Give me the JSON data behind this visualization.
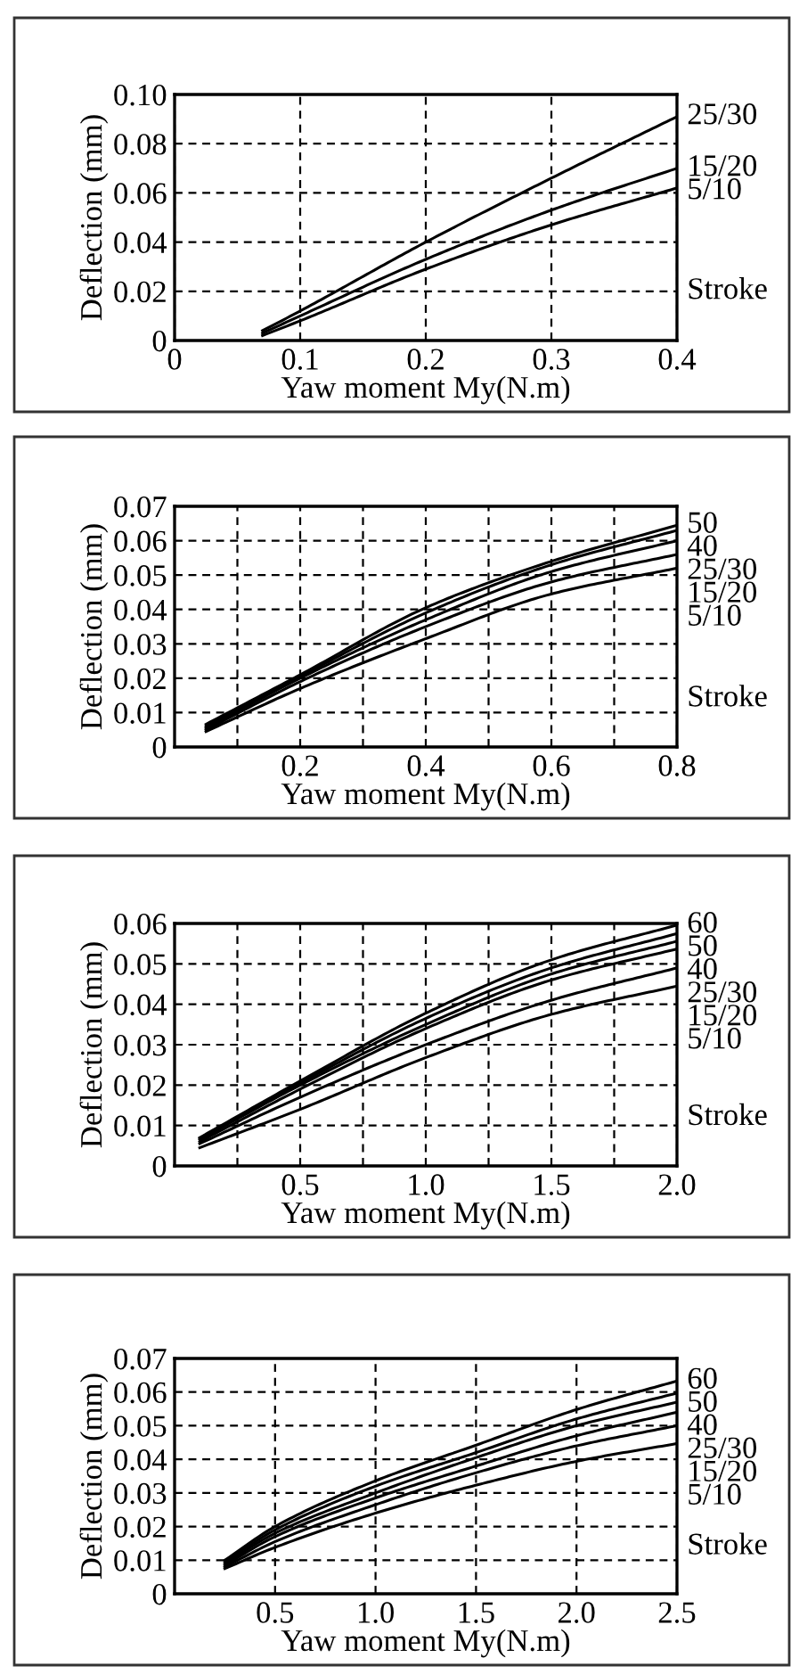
{
  "chart_data": [
    {
      "type": "line",
      "xlabel": "Yaw moment My(N.m)",
      "ylabel": "Deflection (mm)",
      "xlim": [
        0,
        0.4
      ],
      "ylim": [
        0,
        0.1
      ],
      "xticks": [
        0,
        0.1,
        0.2,
        0.3,
        0.4
      ],
      "yticks": [
        0,
        0.02,
        0.04,
        0.06,
        0.08,
        {
          "value": 0.1,
          "label": "0.10"
        }
      ],
      "grid": true,
      "annotations": [
        "Stroke"
      ],
      "x": [
        0.07,
        0.1,
        0.2,
        0.3,
        0.4
      ],
      "series": [
        {
          "name": "25/30",
          "color": "#000000",
          "values": [
            0.004,
            0.012,
            0.04,
            0.066,
            0.091
          ]
        },
        {
          "name": "15/20",
          "color": "#000000",
          "values": [
            0.003,
            0.01,
            0.033,
            0.053,
            0.07
          ]
        },
        {
          "name": "5/10",
          "color": "#000000",
          "values": [
            0.002,
            0.008,
            0.029,
            0.047,
            0.062
          ]
        }
      ]
    },
    {
      "type": "line",
      "xlabel": "Yaw moment My(N.m)",
      "ylabel": "Deflection (mm)",
      "xlim": [
        0,
        0.8
      ],
      "ylim": [
        0,
        0.07
      ],
      "xticks": [
        {
          "value": 0.1,
          "label": null
        },
        0.2,
        {
          "value": 0.3,
          "label": null
        },
        0.4,
        {
          "value": 0.5,
          "label": null
        },
        0.6,
        {
          "value": 0.7,
          "label": null
        },
        0.8
      ],
      "yticks": [
        0,
        0.01,
        0.02,
        0.03,
        0.04,
        0.05,
        0.06,
        0.07
      ],
      "grid": true,
      "annotations": [
        "Stroke"
      ],
      "x": [
        0.05,
        0.2,
        0.4,
        0.6,
        0.8
      ],
      "series": [
        {
          "name": "50",
          "color": "#000000",
          "values": [
            0.0066,
            0.021,
            0.0405,
            0.054,
            0.0645
          ]
        },
        {
          "name": "40",
          "color": "#000000",
          "values": [
            0.006,
            0.0205,
            0.039,
            0.053,
            0.063
          ]
        },
        {
          "name": "25/30",
          "color": "#000000",
          "values": [
            0.0055,
            0.02,
            0.037,
            0.051,
            0.06
          ]
        },
        {
          "name": "15/20",
          "color": "#000000",
          "values": [
            0.005,
            0.019,
            0.035,
            0.048,
            0.056
          ]
        },
        {
          "name": "5/10",
          "color": "#000000",
          "values": [
            0.0045,
            0.017,
            0.0315,
            0.0445,
            0.052
          ]
        }
      ]
    },
    {
      "type": "line",
      "xlabel": "Yaw moment My(N.m)",
      "ylabel": "Deflection (mm)",
      "xlim": [
        0,
        2.0
      ],
      "ylim": [
        0,
        0.06
      ],
      "xticks": [
        {
          "value": 0.25,
          "label": null
        },
        0.5,
        {
          "value": 0.75,
          "label": null
        },
        {
          "value": 1.0,
          "label": "1.0"
        },
        {
          "value": 1.25,
          "label": null
        },
        1.5,
        {
          "value": 1.75,
          "label": null
        },
        {
          "value": 2.0,
          "label": "2.0"
        }
      ],
      "yticks": [
        0,
        0.01,
        0.02,
        0.03,
        0.04,
        0.05,
        0.06
      ],
      "grid": true,
      "annotations": [
        "Stroke"
      ],
      "x": [
        0.1,
        0.5,
        1.0,
        1.5,
        2.0
      ],
      "series": [
        {
          "name": "60",
          "color": "#000000",
          "values": [
            0.007,
            0.021,
            0.0378,
            0.051,
            0.0596
          ]
        },
        {
          "name": "50",
          "color": "#000000",
          "values": [
            0.0068,
            0.0205,
            0.0365,
            0.049,
            0.0575
          ]
        },
        {
          "name": "40",
          "color": "#000000",
          "values": [
            0.0065,
            0.02,
            0.035,
            0.0475,
            0.0556
          ]
        },
        {
          "name": "25/30",
          "color": "#000000",
          "values": [
            0.006,
            0.019,
            0.034,
            0.046,
            0.0537
          ]
        },
        {
          "name": "15/20",
          "color": "#000000",
          "values": [
            0.0055,
            0.017,
            0.03,
            0.041,
            0.049
          ]
        },
        {
          "name": "5/10",
          "color": "#000000",
          "values": [
            0.0045,
            0.014,
            0.0268,
            0.0375,
            0.0445
          ]
        }
      ]
    },
    {
      "type": "line",
      "xlabel": "Yaw moment My(N.m)",
      "ylabel": "Deflection (mm)",
      "xlim": [
        0,
        2.5
      ],
      "ylim": [
        0,
        0.07
      ],
      "xticks": [
        0.5,
        {
          "value": 1.0,
          "label": "1.0"
        },
        1.5,
        {
          "value": 2.0,
          "label": "2.0"
        },
        2.5
      ],
      "yticks": [
        0,
        0.01,
        0.02,
        0.03,
        0.04,
        0.05,
        0.06,
        0.07
      ],
      "grid": true,
      "annotations": [
        "Stroke"
      ],
      "x": [
        0.25,
        0.5,
        1.0,
        1.5,
        2.0,
        2.5
      ],
      "series": [
        {
          "name": "60",
          "color": "#000000",
          "values": [
            0.01,
            0.02,
            0.0336,
            0.0442,
            0.0548,
            0.0633
          ]
        },
        {
          "name": "50",
          "color": "#000000",
          "values": [
            0.0095,
            0.019,
            0.032,
            0.042,
            0.052,
            0.0597
          ]
        },
        {
          "name": "40",
          "color": "#000000",
          "values": [
            0.009,
            0.018,
            0.03,
            0.0405,
            0.05,
            0.057
          ]
        },
        {
          "name": "25/30",
          "color": "#000000",
          "values": [
            0.0085,
            0.017,
            0.0285,
            0.038,
            0.047,
            0.054
          ]
        },
        {
          "name": "15/20",
          "color": "#000000",
          "values": [
            0.008,
            0.0155,
            0.0265,
            0.036,
            0.044,
            0.05
          ]
        },
        {
          "name": "5/10",
          "color": "#000000",
          "values": [
            0.0075,
            0.0138,
            0.024,
            0.0323,
            0.0394,
            0.0447
          ]
        }
      ]
    }
  ]
}
